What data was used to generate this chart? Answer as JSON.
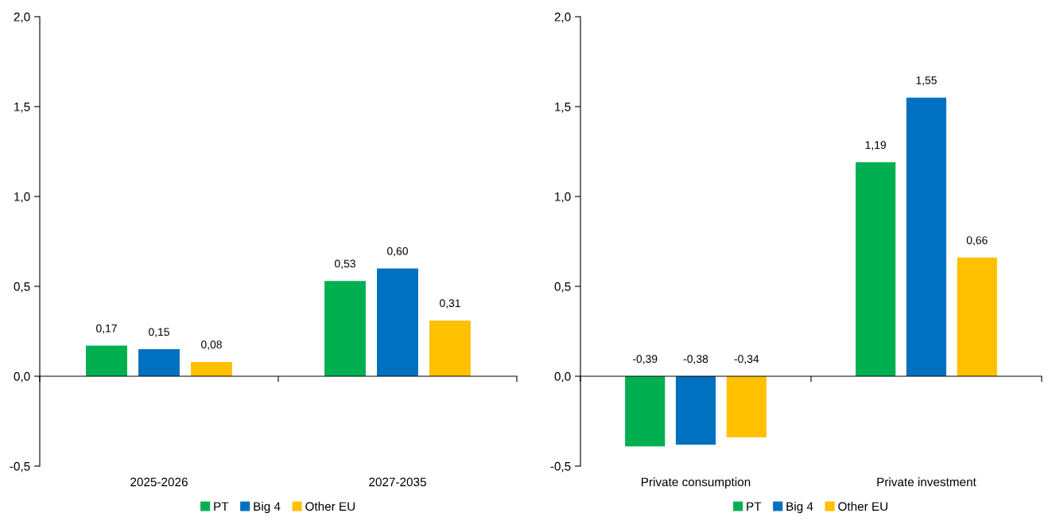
{
  "chart_data": [
    {
      "type": "bar",
      "categories": [
        "2025-2026",
        "2027-2035"
      ],
      "ylim": [
        -0.5,
        2.0
      ],
      "yticks": [
        {
          "value": -0.5,
          "label": "-0,5"
        },
        {
          "value": 0,
          "label": "0,0"
        },
        {
          "value": 0.5,
          "label": "0,5"
        },
        {
          "value": 1.0,
          "label": "1,0"
        },
        {
          "value": 1.5,
          "label": "1,5"
        },
        {
          "value": 2.0,
          "label": "2,0"
        }
      ],
      "legend": "bottom",
      "series": [
        {
          "name": "PT",
          "color": "#00b050",
          "values": [
            0.17,
            0.53
          ],
          "value_labels": [
            "0,17",
            "0,53"
          ]
        },
        {
          "name": "Big 4",
          "color": "#0070c0",
          "values": [
            0.15,
            0.6
          ],
          "value_labels": [
            "0,15",
            "0,60"
          ]
        },
        {
          "name": "Other EU",
          "color": "#ffc000",
          "values": [
            0.08,
            0.31
          ],
          "value_labels": [
            "0,08",
            "0,31"
          ]
        }
      ]
    },
    {
      "type": "bar",
      "categories": [
        "Private consumption",
        "Private investment"
      ],
      "ylim": [
        -0.5,
        2.0
      ],
      "yticks": [
        {
          "value": -0.5,
          "label": "-0,5"
        },
        {
          "value": 0,
          "label": "0,0"
        },
        {
          "value": 0.5,
          "label": "0,5"
        },
        {
          "value": 1.0,
          "label": "1,0"
        },
        {
          "value": 1.5,
          "label": "1,5"
        },
        {
          "value": 2.0,
          "label": "2,0"
        }
      ],
      "legend": "bottom",
      "series": [
        {
          "name": "PT",
          "color": "#00b050",
          "values": [
            -0.39,
            1.19
          ],
          "value_labels": [
            "-0,39",
            "1,19"
          ]
        },
        {
          "name": "Big 4",
          "color": "#0070c0",
          "values": [
            -0.38,
            1.55
          ],
          "value_labels": [
            "-0,38",
            "1,55"
          ]
        },
        {
          "name": "Other EU",
          "color": "#ffc000",
          "values": [
            -0.34,
            0.66
          ],
          "value_labels": [
            "-0,34",
            "0,66"
          ]
        }
      ]
    }
  ]
}
